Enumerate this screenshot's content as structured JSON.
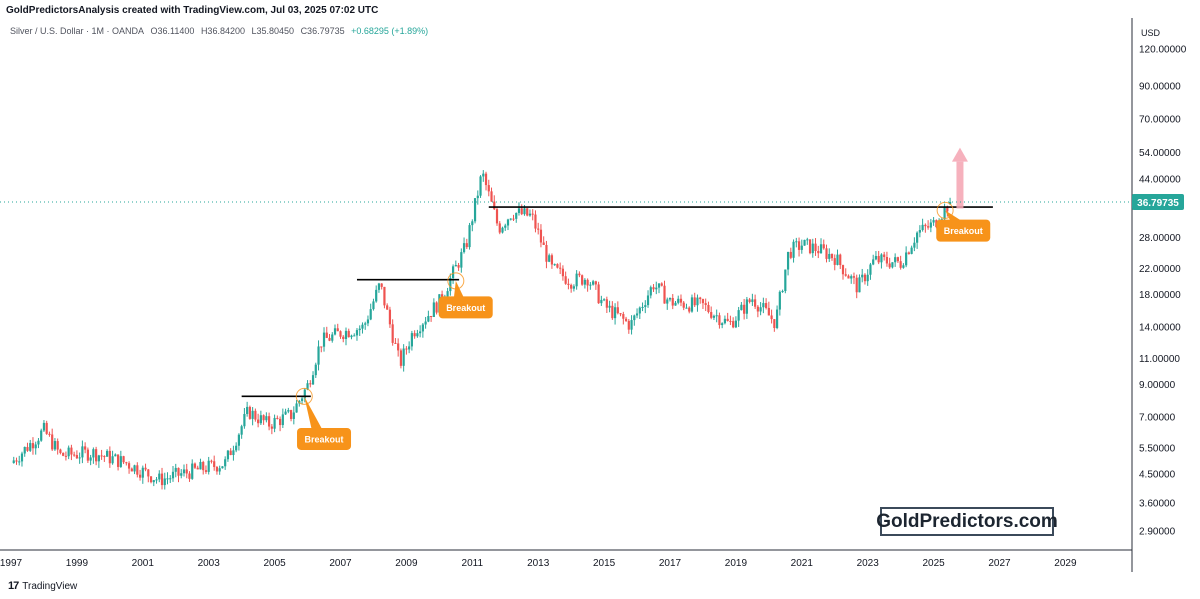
{
  "header": {
    "title": "GoldPredictorsAnalysis created with TradingView.com, Jul 03, 2025 07:02 UTC"
  },
  "symbol": {
    "name": "Silver / U.S. Dollar · 1M · OANDA",
    "open": "O36.11400",
    "high": "H36.84200",
    "low": "L35.80450",
    "close": "C36.79735",
    "change": "+0.68295 (+1.89%)"
  },
  "footer": {
    "brand": "TradingView",
    "logo": "17"
  },
  "watermark": "GoldPredictors.com",
  "colors": {
    "up": "#26a69a",
    "down": "#ef5350",
    "callout": "#f7931a",
    "last_price": "#26a69a"
  },
  "chart_data": {
    "type": "candlestick",
    "instrument": "Silver / U.S. Dollar",
    "interval": "1M",
    "currency_label": "USD",
    "scale": "log",
    "last_price": "36.79735",
    "y_ticks": [
      "120.00000",
      "90.00000",
      "70.00000",
      "54.00000",
      "44.00000",
      "28.00000",
      "22.00000",
      "18.00000",
      "14.00000",
      "11.00000",
      "9.00000",
      "7.00000",
      "5.50000",
      "4.50000",
      "3.60000",
      "2.90000"
    ],
    "x_ticks": [
      "1997",
      "1999",
      "2001",
      "2003",
      "2005",
      "2007",
      "2009",
      "2011",
      "2013",
      "2015",
      "2017",
      "2019",
      "2021",
      "2023",
      "2025",
      "2027",
      "2029"
    ],
    "price_path": [
      [
        1997.0,
        4.9
      ],
      [
        1998.0,
        6.3
      ],
      [
        1998.5,
        5.2
      ],
      [
        1999.5,
        5.3
      ],
      [
        2000.5,
        4.9
      ],
      [
        2001.5,
        4.3
      ],
      [
        2002.5,
        4.6
      ],
      [
        2003.5,
        4.9
      ],
      [
        2004.2,
        7.3
      ],
      [
        2004.8,
        6.6
      ],
      [
        2005.5,
        7.1
      ],
      [
        2006.0,
        8.9
      ],
      [
        2006.4,
        12.5
      ],
      [
        2007.0,
        13.4
      ],
      [
        2007.7,
        14.0
      ],
      [
        2008.2,
        19.5
      ],
      [
        2008.8,
        10.5
      ],
      [
        2009.2,
        13.5
      ],
      [
        2010.0,
        17.0
      ],
      [
        2010.8,
        26.0
      ],
      [
        2011.3,
        46.0
      ],
      [
        2011.8,
        30.0
      ],
      [
        2012.2,
        34.0
      ],
      [
        2012.8,
        33.0
      ],
      [
        2013.4,
        22.0
      ],
      [
        2014.0,
        20.0
      ],
      [
        2014.5,
        20.5
      ],
      [
        2015.0,
        16.5
      ],
      [
        2015.8,
        14.2
      ],
      [
        2016.5,
        19.5
      ],
      [
        2017.0,
        17.0
      ],
      [
        2018.0,
        16.5
      ],
      [
        2018.8,
        14.3
      ],
      [
        2019.5,
        17.5
      ],
      [
        2020.2,
        14.5
      ],
      [
        2020.6,
        25.0
      ],
      [
        2021.0,
        26.5
      ],
      [
        2021.5,
        25.5
      ],
      [
        2022.0,
        24.0
      ],
      [
        2022.7,
        19.0
      ],
      [
        2023.2,
        23.5
      ],
      [
        2024.0,
        23.0
      ],
      [
        2024.5,
        29.0
      ],
      [
        2025.0,
        31.0
      ],
      [
        2025.5,
        36.8
      ]
    ],
    "resistance_lines": [
      {
        "from": 2004.0,
        "to": 2006.1,
        "price": 8.2
      },
      {
        "from": 2007.5,
        "to": 2010.6,
        "price": 20.2
      },
      {
        "from": 2011.5,
        "to": 2026.8,
        "price": 35.4
      }
    ],
    "annotations": [
      {
        "text": "Breakout",
        "x": 2006.5,
        "price": 5.9,
        "points_to_x": 2005.9,
        "points_to_price": 8.2
      },
      {
        "text": "Breakout",
        "x": 2010.8,
        "price": 16.3,
        "points_to_x": 2010.5,
        "points_to_price": 20.0
      },
      {
        "text": "Breakout",
        "x": 2025.9,
        "price": 29.5,
        "points_to_x": 2025.35,
        "points_to_price": 34.5
      }
    ],
    "projection_arrow": {
      "x": 2025.8,
      "from_price": 35.0,
      "to_price": 56.0
    },
    "y_axis_side": "right",
    "grid": false
  }
}
